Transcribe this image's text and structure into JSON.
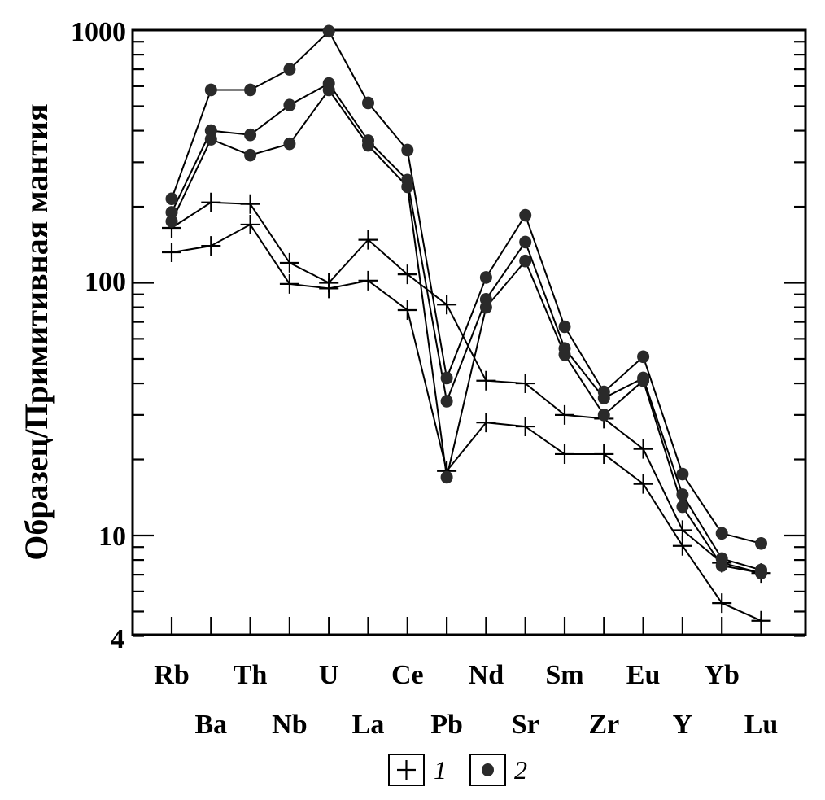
{
  "chart_data": {
    "type": "line",
    "ylabel": "Образец/Примитивная мантия",
    "yscale": "log",
    "ylim": [
      4,
      1000
    ],
    "ytick_labels": [
      "1000",
      "100",
      "10",
      "4"
    ],
    "categories": [
      "Rb",
      "Ba",
      "Th",
      "Nb",
      "U",
      "La",
      "Ce",
      "Pb",
      "Nd",
      "Sr",
      "Sm",
      "Zr",
      "Eu",
      "Y",
      "Yb",
      "Lu"
    ],
    "legend": [
      {
        "marker": "plus",
        "label": "1"
      },
      {
        "marker": "dot",
        "label": "2"
      }
    ],
    "series": [
      {
        "group": "1",
        "marker": "plus",
        "values": [
          165,
          208,
          205,
          120,
          100,
          148,
          108,
          82,
          41,
          40,
          30,
          29,
          22,
          10.5,
          7.8,
          7.1
        ]
      },
      {
        "group": "1",
        "marker": "plus",
        "values": [
          132,
          140,
          170,
          99,
          95,
          102,
          78,
          18,
          28,
          27,
          21,
          21,
          16,
          9.1,
          5.4,
          4.6
        ]
      },
      {
        "group": "2",
        "marker": "dot",
        "values": [
          215,
          580,
          580,
          700,
          990,
          515,
          335,
          42,
          105,
          185,
          67,
          37,
          51,
          17.5,
          10.2,
          9.3
        ]
      },
      {
        "group": "2",
        "marker": "dot",
        "values": [
          190,
          400,
          385,
          505,
          615,
          365,
          255,
          34,
          86,
          145,
          55,
          35,
          42,
          14.5,
          8.1,
          7.3
        ]
      },
      {
        "group": "2",
        "marker": "dot",
        "values": [
          175,
          370,
          320,
          355,
          580,
          350,
          240,
          17,
          80,
          122,
          52,
          30,
          41,
          13,
          7.6,
          7.1
        ]
      }
    ]
  }
}
